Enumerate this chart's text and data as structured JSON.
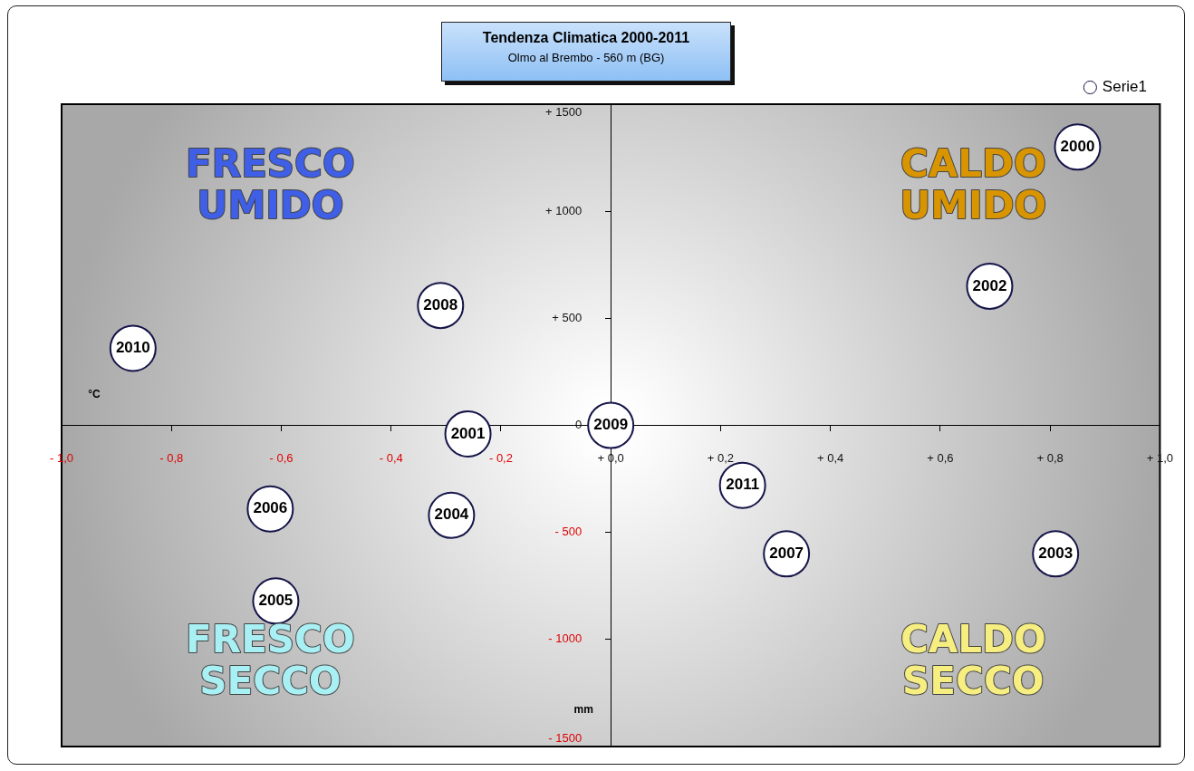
{
  "chart_data": {
    "type": "scatter",
    "title": "Tendenza Climatica 2000-2011",
    "subtitle": "Olmo al Brembo - 560 m (BG)",
    "series": [
      {
        "name": "Serie1",
        "color": "#ffffff",
        "x": [
          0.85,
          0.69,
          -0.31,
          -0.87,
          -0.26,
          0.0,
          0.24,
          -0.62,
          -0.29,
          0.32,
          0.81,
          -0.61
        ],
        "values": [
          1300,
          650,
          560,
          360,
          -40,
          0,
          -280,
          -390,
          -420,
          -600,
          -600,
          -820
        ]
      }
    ],
    "annotations": [
      {
        "text": "2000",
        "x": 0.85,
        "y": 1300
      },
      {
        "text": "2002",
        "x": 0.69,
        "y": 650
      },
      {
        "text": "2008",
        "x": -0.31,
        "y": 560
      },
      {
        "text": "2010",
        "x": -0.87,
        "y": 360
      },
      {
        "text": "2001",
        "x": -0.26,
        "y": -40
      },
      {
        "text": "2009",
        "x": 0.0,
        "y": 0
      },
      {
        "text": "2011",
        "x": 0.24,
        "y": -280
      },
      {
        "text": "2006",
        "x": -0.62,
        "y": -390
      },
      {
        "text": "2004",
        "x": -0.29,
        "y": -420
      },
      {
        "text": "2007",
        "x": 0.32,
        "y": -600
      },
      {
        "text": "2003",
        "x": 0.81,
        "y": -600
      },
      {
        "text": "2005",
        "x": -0.61,
        "y": -820
      },
      "FRESCO UMIDO",
      "CALDO UMIDO",
      "FRESCO SECCO",
      "CALDO SECCO",
      "°C",
      "mm"
    ],
    "xlim": [
      -1.0,
      1.0
    ],
    "xticks": [
      {
        "value": -1.0,
        "label": "- 1,0"
      },
      {
        "value": -0.8,
        "label": "- 0,8"
      },
      {
        "value": -0.6,
        "label": "- 0,6"
      },
      {
        "value": -0.4,
        "label": "- 0,4"
      },
      {
        "value": -0.2,
        "label": "- 0,2"
      },
      {
        "value": 0,
        "label": "+ 0,0"
      },
      {
        "value": 0.2,
        "label": "+ 0,2"
      },
      {
        "value": 0.4,
        "label": "+ 0,4"
      },
      {
        "value": 0.6,
        "label": "+ 0,6"
      },
      {
        "value": 0.8,
        "label": "+ 0,8"
      },
      {
        "value": 1.0,
        "label": "+ 1,0"
      }
    ],
    "ylim": [
      -1500,
      1500
    ],
    "yticks": [
      {
        "value": -1500,
        "label": "- 1500"
      },
      {
        "value": -1000,
        "label": "- 1000"
      },
      {
        "value": -500,
        "label": "- 500"
      },
      0,
      {
        "value": 500,
        "label": "+ 500"
      },
      {
        "value": 1000,
        "label": "+ 1000"
      },
      {
        "value": 1500,
        "label": "+ 1500"
      }
    ],
    "marker": "circle",
    "legend": "top right"
  }
}
